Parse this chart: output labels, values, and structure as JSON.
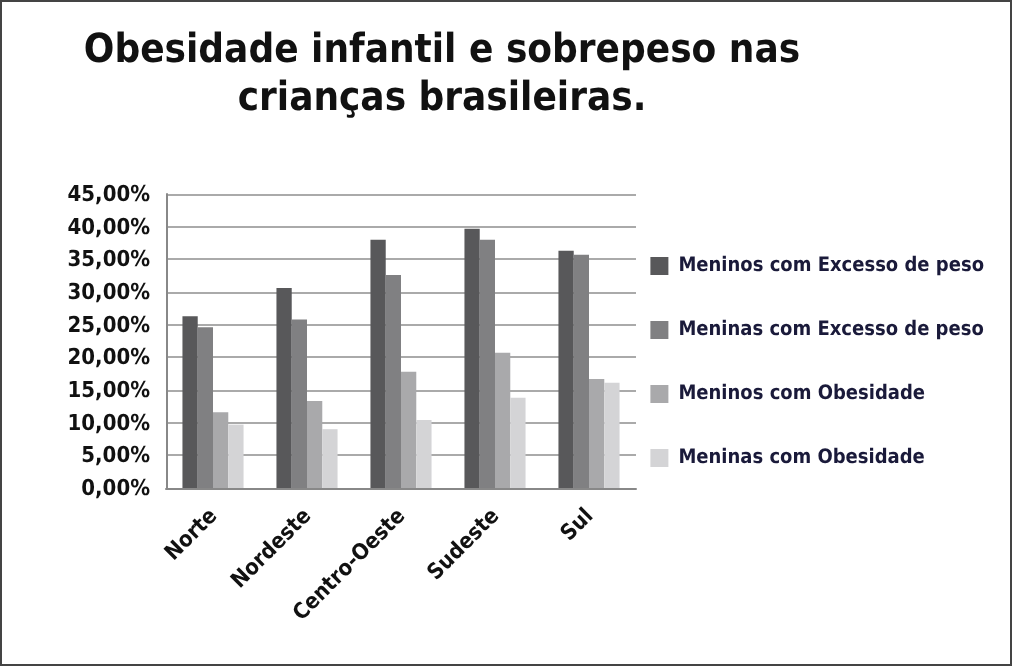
{
  "chart_data": {
    "type": "bar",
    "title": "Obesidade infantil e sobrepeso nas\ncrianças brasileiras.",
    "categories": [
      "Norte",
      "Nordeste",
      "Centro-Oeste",
      "Sudeste",
      "Sul"
    ],
    "series": [
      {
        "name": "Meninos com Excesso de peso",
        "color": "#58585a",
        "values": [
          26.3,
          30.6,
          38.0,
          39.7,
          36.3
        ]
      },
      {
        "name": "Meninas com Excesso de peso",
        "color": "#808082",
        "values": [
          24.6,
          25.8,
          32.6,
          38.0,
          35.7
        ]
      },
      {
        "name": "Meninos com Obesidade",
        "color": "#a9a9ab",
        "values": [
          11.6,
          13.3,
          17.8,
          20.7,
          16.7
        ]
      },
      {
        "name": "Meninas com Obesidade",
        "color": "#d4d4d6",
        "values": [
          9.7,
          9.0,
          10.4,
          13.8,
          16.1
        ]
      }
    ],
    "ylim": [
      0,
      45
    ],
    "yticks": [
      {
        "value": 0,
        "label": "0,00%"
      },
      {
        "value": 5,
        "label": "5,00%"
      },
      {
        "value": 10,
        "label": "10,00%"
      },
      {
        "value": 15,
        "label": "15,00%"
      },
      {
        "value": 20,
        "label": "20,00%"
      },
      {
        "value": 25,
        "label": "25,00%"
      },
      {
        "value": 30,
        "label": "30,00%"
      },
      {
        "value": 35,
        "label": "35,00%"
      },
      {
        "value": 40,
        "label": "40,00%"
      },
      {
        "value": 45,
        "label": "45,00%"
      }
    ],
    "grid": "y",
    "legend": "right"
  }
}
